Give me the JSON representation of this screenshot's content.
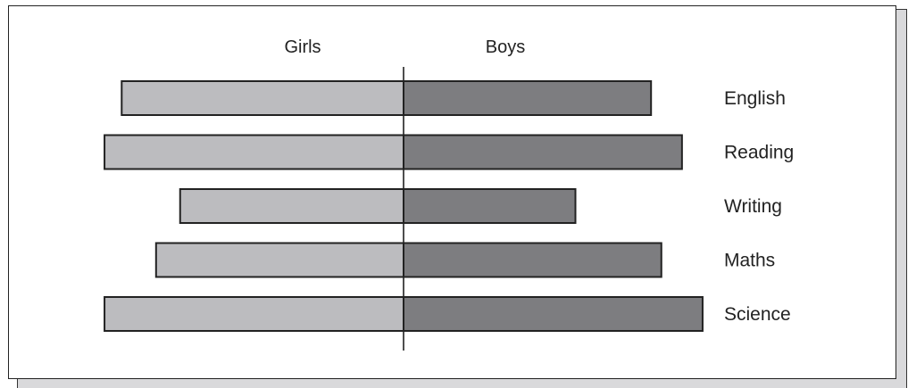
{
  "chart_data": {
    "type": "bar",
    "orientation": "horizontal-diverging",
    "categories": [
      "English",
      "Reading",
      "Writing",
      "Maths",
      "Science"
    ],
    "series": [
      {
        "name": "Girls",
        "side": "left",
        "values": [
          82,
          87,
          65,
          72,
          87
        ],
        "color": "#bcbcbf"
      },
      {
        "name": "Boys",
        "side": "right",
        "values": [
          72,
          81,
          50,
          75,
          87
        ],
        "color": "#7d7d80"
      }
    ],
    "title": "",
    "xlabel": "",
    "ylabel": "",
    "xlim": [
      0,
      100
    ],
    "grid": false,
    "legend": "none",
    "stroke_color": "#222222"
  }
}
